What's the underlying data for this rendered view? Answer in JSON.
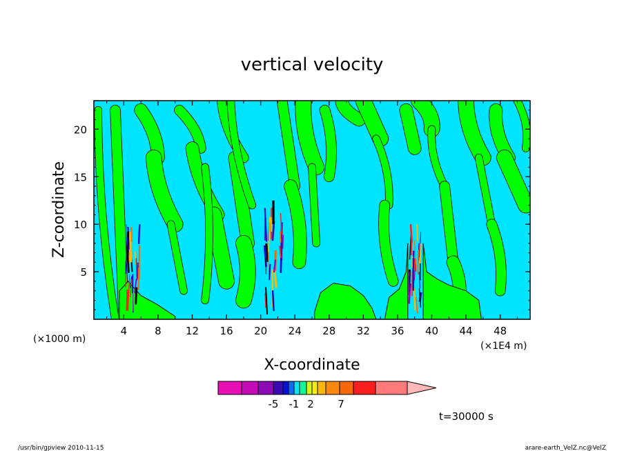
{
  "chart_data": {
    "type": "heatmap",
    "title": "vertical velocity",
    "xlabel": "X-coordinate",
    "ylabel": "Z-coordinate",
    "x_unit_left": "(×1000 m)",
    "x_unit_right": "(×1E4 m)",
    "xlim": [
      0.5,
      51.5
    ],
    "ylim": [
      0,
      23
    ],
    "x_ticks": [
      4,
      8,
      12,
      16,
      20,
      24,
      28,
      32,
      36,
      40,
      44,
      48
    ],
    "x_tick_labels": [
      "4",
      "8",
      "12",
      "16",
      "20",
      "24",
      "28",
      "32",
      "36",
      "40",
      "44",
      "48"
    ],
    "y_ticks": [
      5,
      10,
      15,
      20
    ],
    "y_tick_labels": [
      "5",
      "10",
      "15",
      "20"
    ],
    "colors": {
      "background_level": "#00e5ff",
      "positive_level": "#00ff00",
      "contour_line": "#000000",
      "frame": "#000000"
    },
    "green_bands": [
      [
        1,
        22,
        3,
        0
      ],
      [
        3,
        22,
        4,
        0
      ],
      [
        6,
        22,
        8,
        17
      ],
      [
        7.5,
        17,
        10,
        10
      ],
      [
        9.5,
        10,
        11,
        3
      ],
      [
        10.5,
        22,
        13,
        18
      ],
      [
        12,
        18,
        15,
        11
      ],
      [
        14.5,
        11,
        16,
        4
      ],
      [
        13.5,
        16,
        13.5,
        2
      ],
      [
        15.5,
        23,
        18,
        17
      ],
      [
        17,
        17,
        18.5,
        8
      ],
      [
        18,
        8,
        18,
        2
      ],
      [
        16.5,
        23,
        19,
        12
      ],
      [
        22.5,
        23,
        24,
        14
      ],
      [
        23.5,
        14,
        24.5,
        6
      ],
      [
        25,
        23,
        26.5,
        16
      ],
      [
        26,
        16,
        26.5,
        8
      ],
      [
        27.5,
        22,
        28,
        15
      ],
      [
        29.5,
        23,
        31.5,
        21
      ],
      [
        32,
        23,
        34,
        19
      ],
      [
        33.5,
        19,
        35,
        12
      ],
      [
        34.5,
        12,
        35.5,
        4
      ],
      [
        37,
        22,
        38,
        18
      ],
      [
        38.5,
        23,
        40,
        20
      ],
      [
        40,
        20,
        41.5,
        14
      ],
      [
        41.5,
        14,
        42.5,
        6
      ],
      [
        42.5,
        6,
        43,
        1
      ],
      [
        44,
        23,
        46,
        17
      ],
      [
        45.5,
        17,
        47,
        10
      ],
      [
        47,
        10,
        48,
        3
      ],
      [
        47.5,
        22,
        49,
        17
      ],
      [
        48.5,
        17,
        51,
        12
      ],
      [
        50,
        23,
        51,
        18
      ]
    ],
    "green_regions": [
      [
        [
          26.3,
          0.8
        ],
        [
          27,
          2.8
        ],
        [
          28.5,
          3.8
        ],
        [
          30.5,
          3.5
        ],
        [
          32,
          2.5
        ],
        [
          33,
          1.2
        ],
        [
          33.5,
          0
        ]
      ],
      [
        [
          34.5,
          0
        ],
        [
          35,
          2.3
        ],
        [
          36.2,
          3.2
        ],
        [
          37,
          5
        ],
        [
          37.2,
          8
        ]
      ],
      [
        [
          39,
          8
        ],
        [
          39.4,
          5
        ],
        [
          40.7,
          4.2
        ],
        [
          42,
          3.6
        ],
        [
          44,
          3
        ],
        [
          45.5,
          2
        ],
        [
          45.8,
          0
        ]
      ],
      [
        [
          3.5,
          3
        ],
        [
          4.5,
          4
        ],
        [
          6,
          2.5
        ],
        [
          8,
          1.5
        ],
        [
          10,
          0.3
        ]
      ]
    ],
    "convective_cores_x": [
      5,
      21.5,
      38
    ],
    "colorbar": {
      "colors": [
        "#e80fb4",
        "#c30bb8",
        "#8c0bb5",
        "#3b09b0",
        "#0512d6",
        "#0e6cf2",
        "#0ce3f7",
        "#14f598",
        "#d2f717",
        "#f5e916",
        "#fab80c",
        "#fa880c",
        "#f5680a",
        "#fa1e1e",
        "#ff7a7a",
        "#ffb8b8"
      ],
      "tick_labels": [
        "-5",
        "-1",
        "2",
        "7"
      ]
    },
    "time_label": "t=30000 s"
  },
  "footer": {
    "left": "/usr/bin/gpview   2010-11-15",
    "right": "arare-earth_VelZ.nc@VelZ"
  }
}
